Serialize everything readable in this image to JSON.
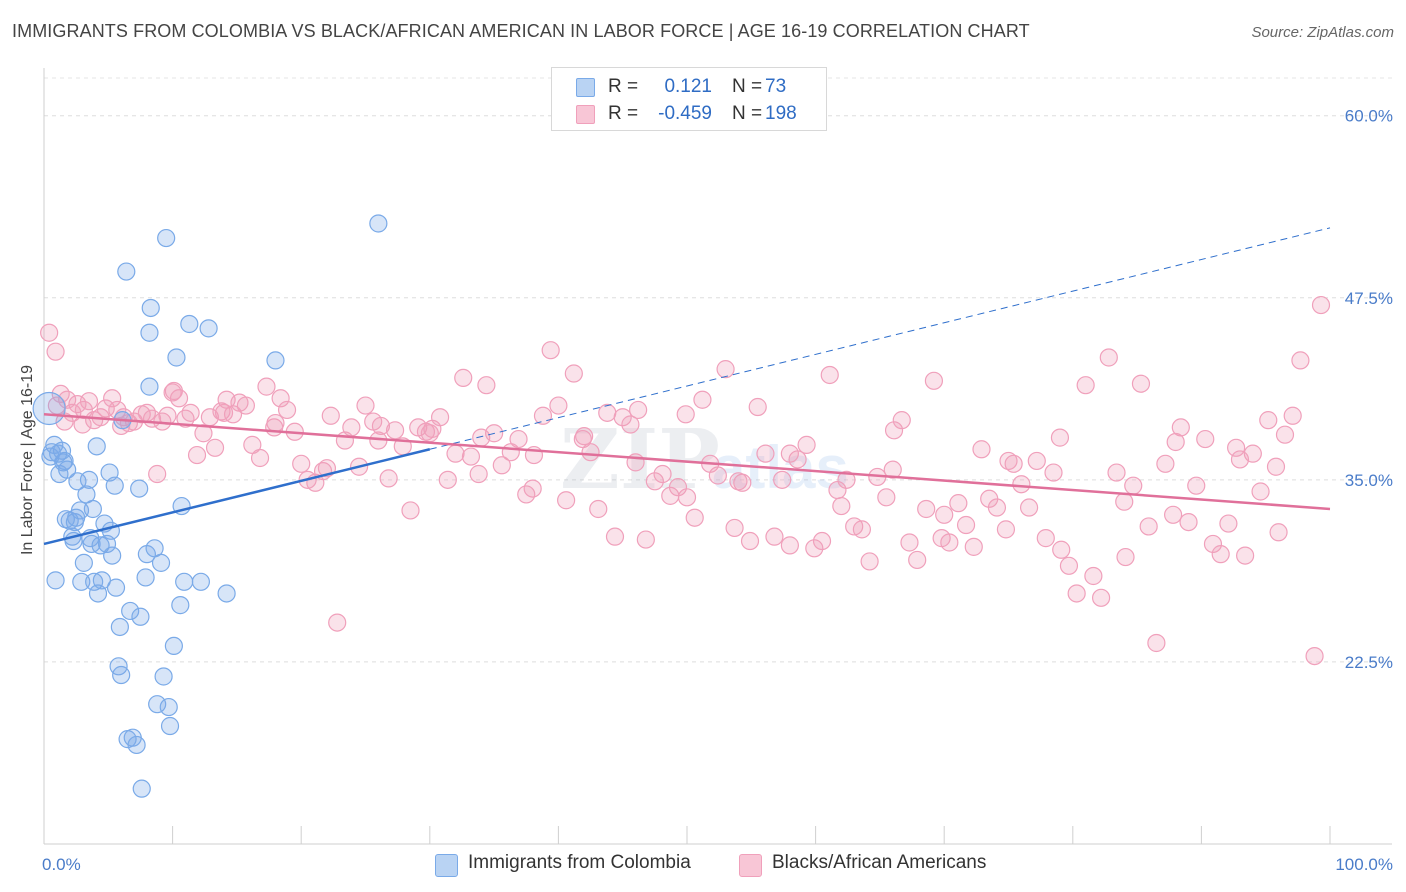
{
  "header": {
    "title": "IMMIGRANTS FROM COLOMBIA VS BLACK/AFRICAN AMERICAN IN LABOR FORCE | AGE 16-19 CORRELATION CHART",
    "source": "Source: ZipAtlas.com"
  },
  "legend": {
    "rows": [
      {
        "r_label": "R =",
        "r_value": "0.121",
        "n_label": "N =",
        "n_value": "73"
      },
      {
        "r_label": "R =",
        "r_value": "-0.459",
        "n_label": "N =",
        "n_value": "198"
      }
    ],
    "bottom": [
      "Immigrants from Colombia",
      "Blacks/African Americans"
    ]
  },
  "chart_data": {
    "type": "scatter",
    "title": "IMMIGRANTS FROM COLOMBIA VS BLACK/AFRICAN AMERICAN IN LABOR FORCE | AGE 16-19 CORRELATION CHART",
    "xlabel": "",
    "ylabel": "In Labor Force | Age 16-19",
    "xlim": [
      0,
      100
    ],
    "ylim": [
      10,
      63
    ],
    "x_tick_labels": [
      "0.0%",
      "100.0%"
    ],
    "y_ticks": [
      22.5,
      35.0,
      47.5,
      60.0
    ],
    "y_tick_labels": [
      "22.5%",
      "35.0%",
      "47.5%",
      "60.0%"
    ],
    "grid": "horizontal dashed",
    "legend_position": "top-center",
    "colors": {
      "colombia": "#7aaae8",
      "black": "#f0a0bb",
      "colombia_line": "#2f6fcc",
      "black_line": "#e0709a"
    },
    "series": [
      {
        "name": "Immigrants from Colombia",
        "r": 0.121,
        "n": 73,
        "trend": {
          "x0": 0,
          "y0": 30.6,
          "x1": 30,
          "y1": 37.1,
          "dashed_to_x": 100,
          "dashed_to_y": 52.3
        },
        "points": [
          [
            0.4,
            39.9
          ],
          [
            0.6,
            36.9
          ],
          [
            0.8,
            37.4
          ],
          [
            0.5,
            36.6
          ],
          [
            0.9,
            28.1
          ],
          [
            1.2,
            35.4
          ],
          [
            1.5,
            36.2
          ],
          [
            1.4,
            37.0
          ],
          [
            1.6,
            36.3
          ],
          [
            1.8,
            35.7
          ],
          [
            1.7,
            32.3
          ],
          [
            2.0,
            32.2
          ],
          [
            2.2,
            31.1
          ],
          [
            2.3,
            30.8
          ],
          [
            2.4,
            32.1
          ],
          [
            2.6,
            34.9
          ],
          [
            2.8,
            32.9
          ],
          [
            2.9,
            28.0
          ],
          [
            3.1,
            29.3
          ],
          [
            3.3,
            34.0
          ],
          [
            3.5,
            35.0
          ],
          [
            3.6,
            31.0
          ],
          [
            3.7,
            30.6
          ],
          [
            3.8,
            33.0
          ],
          [
            3.9,
            28.0
          ],
          [
            4.1,
            37.3
          ],
          [
            4.2,
            27.2
          ],
          [
            4.4,
            30.5
          ],
          [
            4.5,
            28.1
          ],
          [
            4.7,
            32.0
          ],
          [
            4.9,
            30.6
          ],
          [
            5.1,
            35.5
          ],
          [
            5.3,
            29.8
          ],
          [
            5.5,
            34.6
          ],
          [
            5.6,
            27.6
          ],
          [
            5.8,
            22.2
          ],
          [
            5.9,
            24.9
          ],
          [
            6.0,
            21.6
          ],
          [
            6.1,
            39.1
          ],
          [
            6.4,
            49.3
          ],
          [
            6.5,
            17.2
          ],
          [
            6.7,
            26.0
          ],
          [
            6.9,
            17.3
          ],
          [
            7.2,
            16.8
          ],
          [
            7.4,
            34.4
          ],
          [
            7.5,
            25.6
          ],
          [
            7.6,
            13.8
          ],
          [
            7.9,
            28.3
          ],
          [
            8.0,
            29.9
          ],
          [
            8.2,
            41.4
          ],
          [
            8.3,
            46.8
          ],
          [
            8.2,
            45.1
          ],
          [
            8.6,
            30.3
          ],
          [
            8.8,
            19.6
          ],
          [
            9.1,
            29.3
          ],
          [
            9.3,
            21.5
          ],
          [
            9.5,
            51.6
          ],
          [
            9.7,
            19.4
          ],
          [
            9.8,
            18.1
          ],
          [
            10.1,
            23.6
          ],
          [
            10.3,
            43.4
          ],
          [
            10.6,
            26.4
          ],
          [
            10.7,
            33.2
          ],
          [
            10.9,
            28.0
          ],
          [
            11.3,
            45.7
          ],
          [
            12.2,
            28.0
          ],
          [
            12.8,
            45.4
          ],
          [
            14.2,
            27.2
          ],
          [
            18.0,
            43.2
          ],
          [
            26.0,
            52.6
          ],
          [
            5.2,
            31.5
          ],
          [
            1.1,
            36.8
          ],
          [
            2.5,
            32.4
          ]
        ]
      },
      {
        "name": "Blacks/African Americans",
        "r": -0.459,
        "n": 198,
        "trend": {
          "x0": 0,
          "y0": 39.5,
          "x1": 100,
          "y1": 33.0
        },
        "points": [
          [
            0.4,
            45.1
          ],
          [
            0.9,
            43.8
          ],
          [
            1.3,
            40.9
          ],
          [
            1.6,
            39.0
          ],
          [
            1.8,
            40.5
          ],
          [
            2.2,
            39.6
          ],
          [
            2.6,
            40.2
          ],
          [
            3.1,
            39.8
          ],
          [
            3.5,
            40.4
          ],
          [
            3.9,
            39.1
          ],
          [
            4.4,
            39.3
          ],
          [
            4.8,
            39.9
          ],
          [
            5.3,
            40.6
          ],
          [
            5.7,
            39.8
          ],
          [
            6.2,
            39.3
          ],
          [
            6.6,
            38.9
          ],
          [
            7.0,
            39.0
          ],
          [
            7.6,
            39.5
          ],
          [
            8.0,
            39.6
          ],
          [
            8.4,
            39.2
          ],
          [
            8.8,
            35.4
          ],
          [
            9.2,
            39.0
          ],
          [
            9.6,
            39.4
          ],
          [
            10.1,
            41.1
          ],
          [
            10.5,
            40.6
          ],
          [
            11.0,
            39.2
          ],
          [
            11.4,
            39.6
          ],
          [
            11.9,
            36.7
          ],
          [
            12.4,
            38.2
          ],
          [
            12.9,
            39.3
          ],
          [
            13.3,
            37.2
          ],
          [
            13.8,
            39.7
          ],
          [
            14.2,
            40.5
          ],
          [
            14.7,
            39.5
          ],
          [
            15.2,
            40.3
          ],
          [
            15.7,
            40.1
          ],
          [
            16.2,
            37.4
          ],
          [
            16.8,
            36.5
          ],
          [
            17.3,
            41.4
          ],
          [
            17.9,
            38.6
          ],
          [
            18.4,
            40.6
          ],
          [
            18.9,
            39.8
          ],
          [
            19.5,
            38.3
          ],
          [
            20.0,
            36.1
          ],
          [
            20.5,
            35.0
          ],
          [
            21.1,
            34.8
          ],
          [
            21.7,
            35.6
          ],
          [
            22.3,
            39.4
          ],
          [
            22.8,
            25.2
          ],
          [
            23.4,
            37.7
          ],
          [
            23.9,
            38.6
          ],
          [
            24.5,
            35.9
          ],
          [
            25.0,
            40.1
          ],
          [
            25.6,
            39.0
          ],
          [
            26.2,
            38.7
          ],
          [
            26.8,
            35.1
          ],
          [
            27.3,
            38.4
          ],
          [
            27.9,
            37.3
          ],
          [
            28.5,
            32.9
          ],
          [
            29.1,
            38.6
          ],
          [
            29.7,
            38.3
          ],
          [
            30.2,
            38.5
          ],
          [
            30.8,
            39.3
          ],
          [
            31.4,
            35.0
          ],
          [
            32.0,
            36.8
          ],
          [
            32.6,
            42.0
          ],
          [
            33.2,
            36.6
          ],
          [
            33.8,
            35.4
          ],
          [
            34.4,
            41.5
          ],
          [
            35.0,
            38.2
          ],
          [
            35.6,
            36.0
          ],
          [
            36.3,
            36.9
          ],
          [
            36.9,
            37.8
          ],
          [
            37.5,
            34.0
          ],
          [
            38.1,
            36.7
          ],
          [
            38.8,
            39.4
          ],
          [
            39.4,
            43.9
          ],
          [
            40.0,
            40.1
          ],
          [
            40.6,
            33.6
          ],
          [
            41.2,
            42.3
          ],
          [
            41.9,
            37.8
          ],
          [
            42.5,
            36.9
          ],
          [
            43.1,
            33.0
          ],
          [
            43.8,
            39.6
          ],
          [
            44.4,
            31.1
          ],
          [
            45.0,
            39.3
          ],
          [
            45.6,
            38.8
          ],
          [
            46.2,
            39.8
          ],
          [
            46.8,
            30.9
          ],
          [
            47.5,
            34.9
          ],
          [
            48.1,
            35.4
          ],
          [
            48.7,
            33.9
          ],
          [
            49.3,
            34.5
          ],
          [
            49.9,
            39.5
          ],
          [
            50.6,
            32.4
          ],
          [
            51.2,
            40.5
          ],
          [
            51.8,
            36.1
          ],
          [
            52.4,
            35.3
          ],
          [
            53.0,
            42.6
          ],
          [
            53.7,
            31.7
          ],
          [
            54.3,
            34.8
          ],
          [
            54.9,
            30.8
          ],
          [
            55.5,
            40.0
          ],
          [
            56.1,
            36.8
          ],
          [
            56.8,
            31.1
          ],
          [
            57.4,
            35.0
          ],
          [
            58.0,
            30.5
          ],
          [
            58.6,
            36.4
          ],
          [
            59.3,
            37.4
          ],
          [
            59.9,
            30.3
          ],
          [
            60.5,
            30.8
          ],
          [
            61.1,
            42.2
          ],
          [
            61.7,
            34.3
          ],
          [
            62.4,
            35.0
          ],
          [
            63.0,
            31.8
          ],
          [
            63.6,
            31.6
          ],
          [
            64.2,
            29.4
          ],
          [
            64.8,
            35.2
          ],
          [
            65.5,
            33.8
          ],
          [
            66.1,
            38.4
          ],
          [
            66.7,
            39.1
          ],
          [
            67.3,
            30.7
          ],
          [
            67.9,
            29.5
          ],
          [
            68.6,
            33.0
          ],
          [
            69.2,
            41.8
          ],
          [
            69.8,
            31.0
          ],
          [
            70.4,
            30.7
          ],
          [
            71.1,
            33.4
          ],
          [
            71.7,
            31.9
          ],
          [
            72.3,
            30.4
          ],
          [
            72.9,
            37.1
          ],
          [
            73.5,
            33.7
          ],
          [
            74.1,
            33.1
          ],
          [
            74.8,
            31.6
          ],
          [
            75.4,
            36.1
          ],
          [
            76.0,
            34.7
          ],
          [
            76.6,
            33.1
          ],
          [
            77.2,
            36.3
          ],
          [
            77.9,
            31.0
          ],
          [
            78.5,
            35.5
          ],
          [
            79.1,
            30.2
          ],
          [
            79.7,
            29.1
          ],
          [
            80.3,
            27.2
          ],
          [
            81.0,
            41.5
          ],
          [
            81.6,
            28.4
          ],
          [
            82.2,
            26.9
          ],
          [
            82.8,
            43.4
          ],
          [
            83.4,
            35.5
          ],
          [
            84.1,
            29.7
          ],
          [
            84.7,
            34.6
          ],
          [
            85.3,
            41.6
          ],
          [
            85.9,
            31.8
          ],
          [
            86.5,
            23.8
          ],
          [
            87.2,
            36.1
          ],
          [
            87.8,
            32.6
          ],
          [
            88.4,
            38.6
          ],
          [
            89.0,
            32.1
          ],
          [
            89.6,
            34.6
          ],
          [
            90.3,
            37.8
          ],
          [
            90.9,
            30.6
          ],
          [
            91.5,
            29.9
          ],
          [
            92.1,
            32.0
          ],
          [
            92.7,
            37.2
          ],
          [
            93.4,
            29.8
          ],
          [
            94.0,
            36.8
          ],
          [
            94.6,
            34.2
          ],
          [
            95.2,
            39.1
          ],
          [
            95.8,
            35.9
          ],
          [
            96.5,
            38.1
          ],
          [
            97.1,
            39.4
          ],
          [
            97.7,
            43.2
          ],
          [
            99.3,
            47.0
          ],
          [
            98.8,
            22.9
          ],
          [
            96.0,
            31.4
          ],
          [
            93.0,
            36.4
          ],
          [
            88.0,
            37.6
          ],
          [
            84.0,
            33.5
          ],
          [
            79.0,
            37.9
          ],
          [
            75.0,
            36.3
          ],
          [
            70.0,
            32.6
          ],
          [
            66.0,
            35.7
          ],
          [
            62.0,
            33.2
          ],
          [
            58.0,
            36.8
          ],
          [
            54.0,
            34.9
          ],
          [
            50.0,
            33.8
          ],
          [
            46.0,
            36.2
          ],
          [
            42.0,
            38.0
          ],
          [
            38.0,
            34.4
          ],
          [
            34.0,
            37.9
          ],
          [
            30.0,
            38.2
          ],
          [
            26.0,
            37.7
          ],
          [
            22.0,
            35.8
          ],
          [
            18.0,
            38.9
          ],
          [
            14.0,
            39.6
          ],
          [
            10.0,
            41.0
          ],
          [
            6.0,
            38.7
          ],
          [
            3.0,
            38.8
          ],
          [
            1.0,
            40.1
          ]
        ]
      }
    ]
  }
}
